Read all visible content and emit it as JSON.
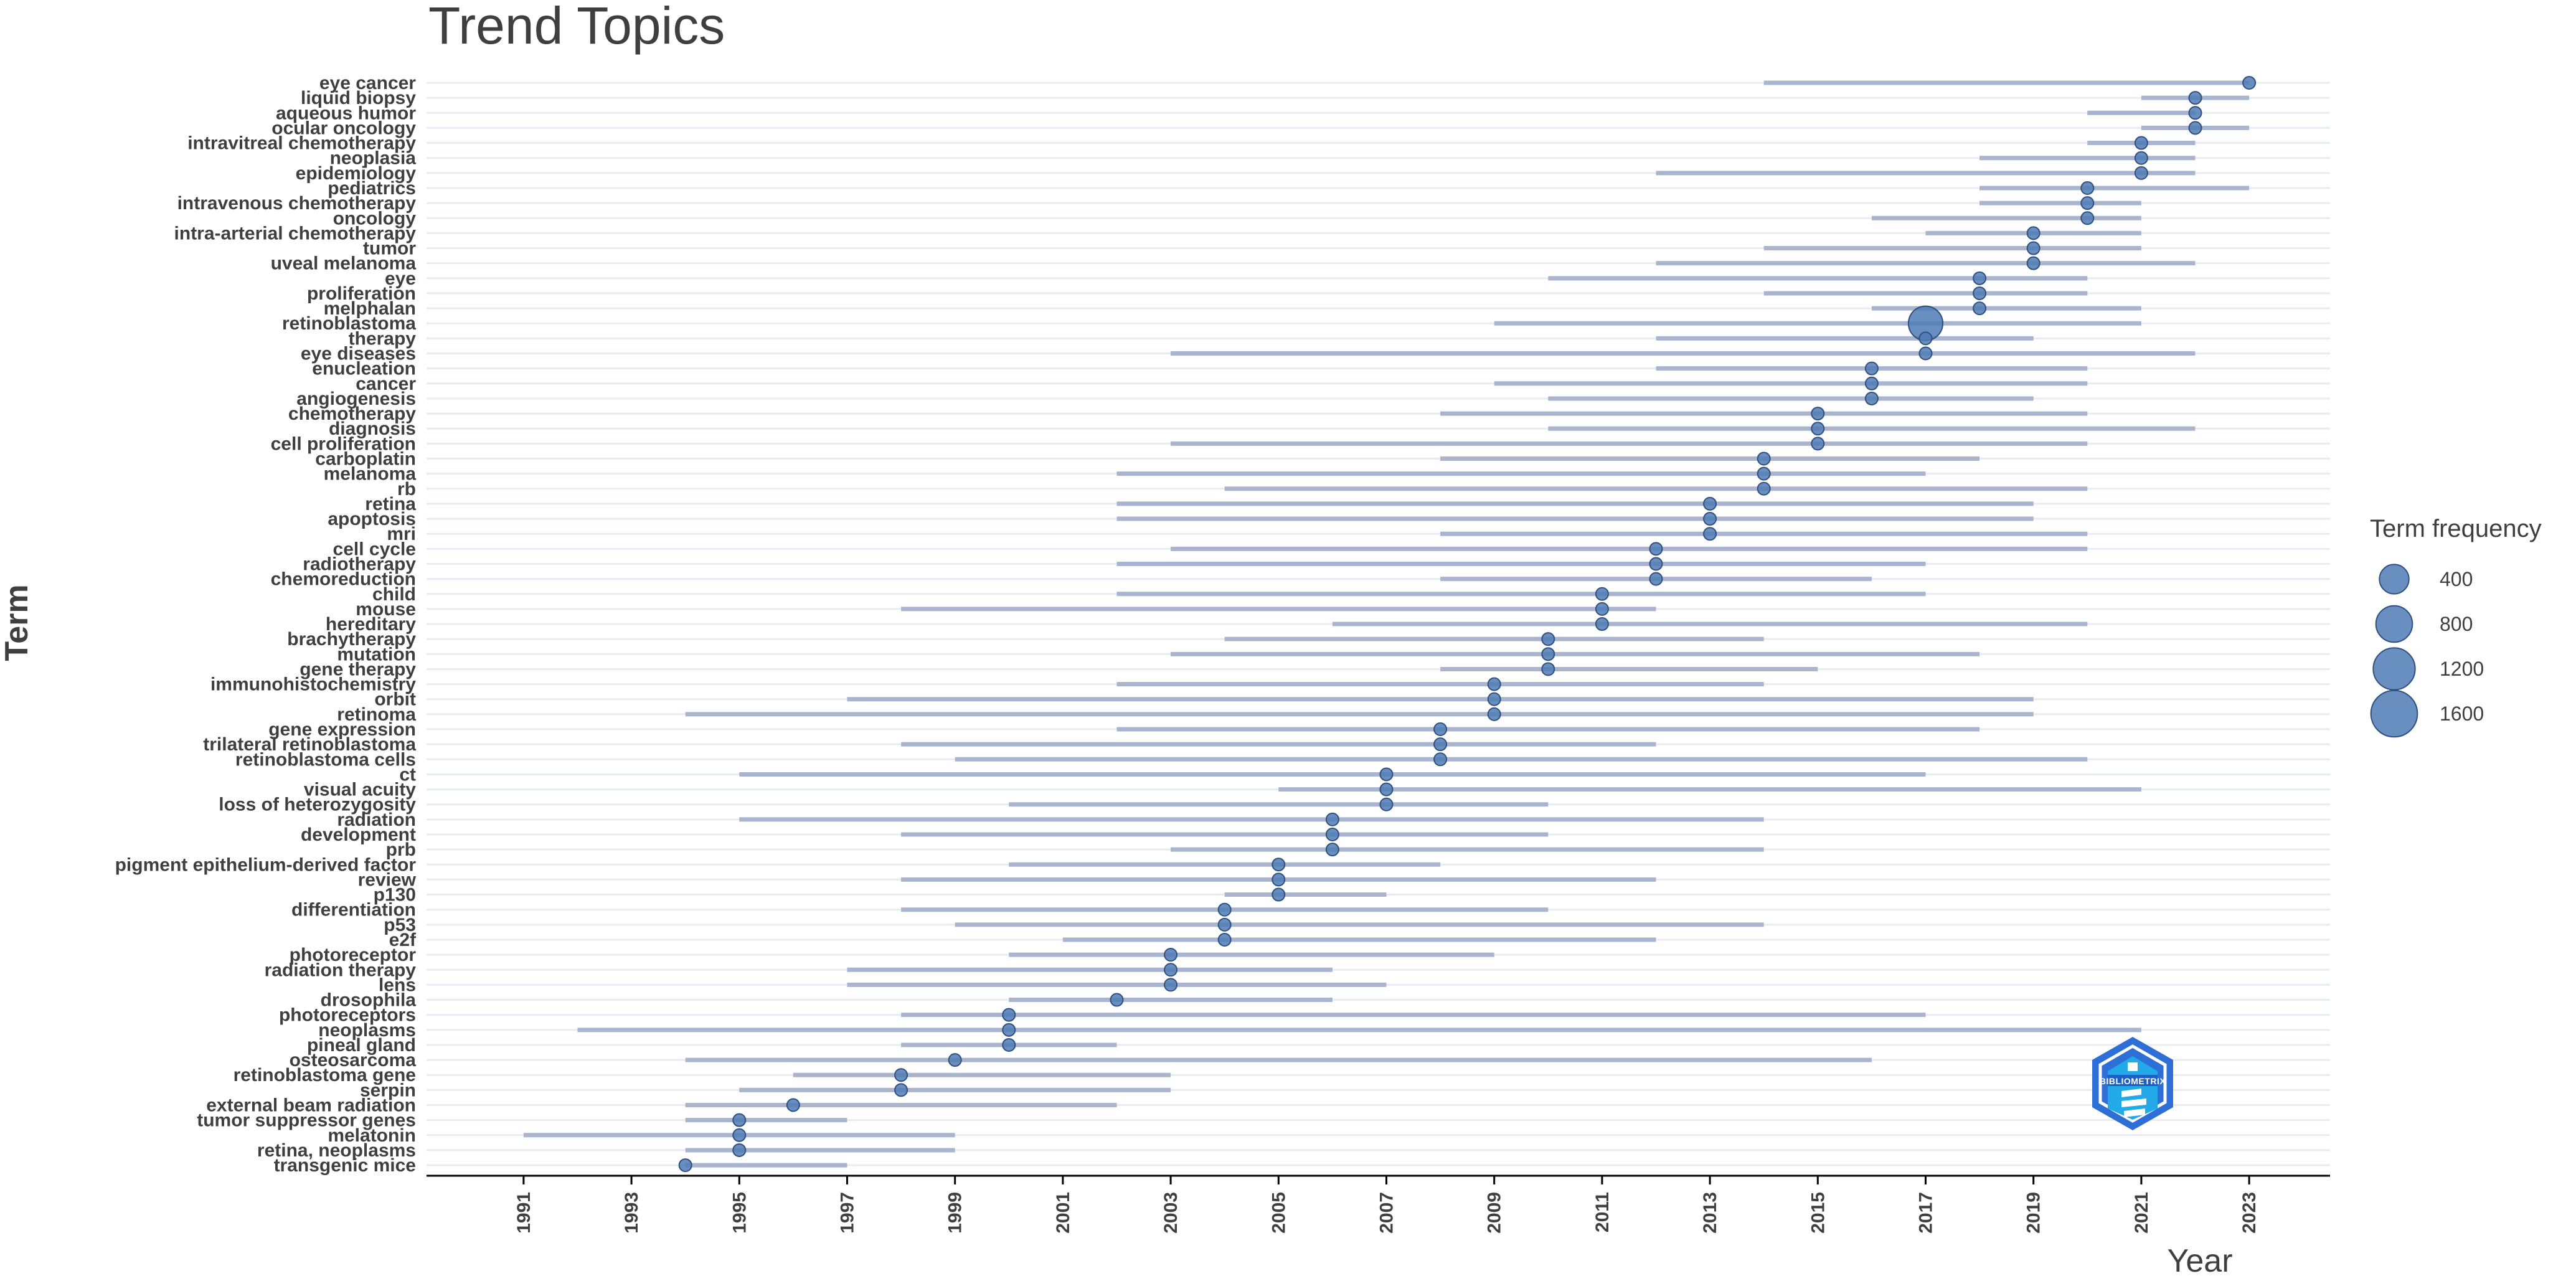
{
  "chart_data": {
    "type": "scatter",
    "title": "Trend Topics",
    "xlabel": "Year",
    "ylabel": "Term",
    "xlim": [
      1989.2,
      2024.5
    ],
    "x_ticks": [
      1991,
      1993,
      1995,
      1997,
      1999,
      2001,
      2003,
      2005,
      2007,
      2009,
      2011,
      2013,
      2015,
      2017,
      2019,
      2021,
      2023
    ],
    "grid": "horizontal",
    "legend": {
      "title": "Term frequency",
      "position": "right",
      "entries": [
        400,
        800,
        1200,
        1600
      ]
    },
    "colors": {
      "point": "#4f7bb5",
      "segment": "#a9b4cf",
      "grid": "#e8ebf0",
      "text": "#3f3f3f"
    },
    "terms": [
      {
        "term": "eye cancer",
        "start": 2014,
        "median": 2023,
        "end": 2023,
        "freq": 30
      },
      {
        "term": "liquid biopsy",
        "start": 2021,
        "median": 2022,
        "end": 2023,
        "freq": 60
      },
      {
        "term": "aqueous humor",
        "start": 2020,
        "median": 2022,
        "end": 2022,
        "freq": 60
      },
      {
        "term": "ocular oncology",
        "start": 2021,
        "median": 2022,
        "end": 2023,
        "freq": 60
      },
      {
        "term": "intravitreal chemotherapy",
        "start": 2020,
        "median": 2021,
        "end": 2022,
        "freq": 90
      },
      {
        "term": "neoplasia",
        "start": 2018,
        "median": 2021,
        "end": 2022,
        "freq": 90
      },
      {
        "term": "epidemiology",
        "start": 2012,
        "median": 2021,
        "end": 2022,
        "freq": 90
      },
      {
        "term": "pediatrics",
        "start": 2018,
        "median": 2020,
        "end": 2023,
        "freq": 100
      },
      {
        "term": "intravenous chemotherapy",
        "start": 2018,
        "median": 2020,
        "end": 2021,
        "freq": 100
      },
      {
        "term": "oncology",
        "start": 2016,
        "median": 2020,
        "end": 2021,
        "freq": 100
      },
      {
        "term": "intra-arterial chemotherapy",
        "start": 2017,
        "median": 2019,
        "end": 2021,
        "freq": 150
      },
      {
        "term": "tumor",
        "start": 2014,
        "median": 2019,
        "end": 2021,
        "freq": 150
      },
      {
        "term": "uveal melanoma",
        "start": 2012,
        "median": 2019,
        "end": 2022,
        "freq": 150
      },
      {
        "term": "eye",
        "start": 2010,
        "median": 2018,
        "end": 2020,
        "freq": 150
      },
      {
        "term": "proliferation",
        "start": 2014,
        "median": 2018,
        "end": 2020,
        "freq": 150
      },
      {
        "term": "melphalan",
        "start": 2016,
        "median": 2018,
        "end": 2021,
        "freq": 150
      },
      {
        "term": "retinoblastoma",
        "start": 2009,
        "median": 2017,
        "end": 2021,
        "freq": 1800
      },
      {
        "term": "therapy",
        "start": 2012,
        "median": 2017,
        "end": 2019,
        "freq": 60
      },
      {
        "term": "eye diseases",
        "start": 2003,
        "median": 2017,
        "end": 2022,
        "freq": 60
      },
      {
        "term": "enucleation",
        "start": 2012,
        "median": 2016,
        "end": 2020,
        "freq": 160
      },
      {
        "term": "cancer",
        "start": 2009,
        "median": 2016,
        "end": 2020,
        "freq": 160
      },
      {
        "term": "angiogenesis",
        "start": 2010,
        "median": 2016,
        "end": 2019,
        "freq": 110
      },
      {
        "term": "chemotherapy",
        "start": 2008,
        "median": 2015,
        "end": 2020,
        "freq": 220
      },
      {
        "term": "diagnosis",
        "start": 2010,
        "median": 2015,
        "end": 2022,
        "freq": 110
      },
      {
        "term": "cell proliferation",
        "start": 2003,
        "median": 2015,
        "end": 2020,
        "freq": 90
      },
      {
        "term": "carboplatin",
        "start": 2008,
        "median": 2014,
        "end": 2018,
        "freq": 130
      },
      {
        "term": "melanoma",
        "start": 2002,
        "median": 2014,
        "end": 2017,
        "freq": 130
      },
      {
        "term": "rb",
        "start": 2004,
        "median": 2014,
        "end": 2020,
        "freq": 120
      },
      {
        "term": "retina",
        "start": 2002,
        "median": 2013,
        "end": 2019,
        "freq": 200
      },
      {
        "term": "apoptosis",
        "start": 2002,
        "median": 2013,
        "end": 2019,
        "freq": 170
      },
      {
        "term": "mri",
        "start": 2008,
        "median": 2013,
        "end": 2020,
        "freq": 130
      },
      {
        "term": "cell cycle",
        "start": 2003,
        "median": 2012,
        "end": 2020,
        "freq": 130
      },
      {
        "term": "radiotherapy",
        "start": 2002,
        "median": 2012,
        "end": 2017,
        "freq": 130
      },
      {
        "term": "chemoreduction",
        "start": 2008,
        "median": 2012,
        "end": 2016,
        "freq": 130
      },
      {
        "term": "child",
        "start": 2002,
        "median": 2011,
        "end": 2017,
        "freq": 90
      },
      {
        "term": "mouse",
        "start": 1998,
        "median": 2011,
        "end": 2012,
        "freq": 90
      },
      {
        "term": "hereditary",
        "start": 2006,
        "median": 2011,
        "end": 2020,
        "freq": 90
      },
      {
        "term": "brachytherapy",
        "start": 2004,
        "median": 2010,
        "end": 2014,
        "freq": 110
      },
      {
        "term": "mutation",
        "start": 2003,
        "median": 2010,
        "end": 2018,
        "freq": 110
      },
      {
        "term": "gene therapy",
        "start": 2008,
        "median": 2010,
        "end": 2015,
        "freq": 110
      },
      {
        "term": "immunohistochemistry",
        "start": 2002,
        "median": 2009,
        "end": 2014,
        "freq": 120
      },
      {
        "term": "orbit",
        "start": 1997,
        "median": 2009,
        "end": 2019,
        "freq": 120
      },
      {
        "term": "retinoma",
        "start": 1994,
        "median": 2009,
        "end": 2019,
        "freq": 120
      },
      {
        "term": "gene expression",
        "start": 2002,
        "median": 2008,
        "end": 2018,
        "freq": 100
      },
      {
        "term": "trilateral retinoblastoma",
        "start": 1998,
        "median": 2008,
        "end": 2012,
        "freq": 100
      },
      {
        "term": "retinoblastoma cells",
        "start": 1999,
        "median": 2008,
        "end": 2020,
        "freq": 100
      },
      {
        "term": "ct",
        "start": 1995,
        "median": 2007,
        "end": 2017,
        "freq": 100
      },
      {
        "term": "visual acuity",
        "start": 2005,
        "median": 2007,
        "end": 2021,
        "freq": 100
      },
      {
        "term": "loss of heterozygosity",
        "start": 2000,
        "median": 2007,
        "end": 2010,
        "freq": 100
      },
      {
        "term": "radiation",
        "start": 1995,
        "median": 2006,
        "end": 2014,
        "freq": 110
      },
      {
        "term": "development",
        "start": 1998,
        "median": 2006,
        "end": 2010,
        "freq": 110
      },
      {
        "term": "prb",
        "start": 2003,
        "median": 2006,
        "end": 2014,
        "freq": 110
      },
      {
        "term": "pigment epithelium-derived factor",
        "start": 2000,
        "median": 2005,
        "end": 2008,
        "freq": 90
      },
      {
        "term": "review",
        "start": 1998,
        "median": 2005,
        "end": 2012,
        "freq": 90
      },
      {
        "term": "p130",
        "start": 2004,
        "median": 2005,
        "end": 2007,
        "freq": 90
      },
      {
        "term": "differentiation",
        "start": 1998,
        "median": 2004,
        "end": 2010,
        "freq": 120
      },
      {
        "term": "p53",
        "start": 1999,
        "median": 2004,
        "end": 2014,
        "freq": 120
      },
      {
        "term": "e2f",
        "start": 2001,
        "median": 2004,
        "end": 2012,
        "freq": 120
      },
      {
        "term": "photoreceptor",
        "start": 2000,
        "median": 2003,
        "end": 2009,
        "freq": 110
      },
      {
        "term": "radiation therapy",
        "start": 1997,
        "median": 2003,
        "end": 2006,
        "freq": 110
      },
      {
        "term": "lens",
        "start": 1997,
        "median": 2003,
        "end": 2007,
        "freq": 110
      },
      {
        "term": "drosophila",
        "start": 2000,
        "median": 2002,
        "end": 2006,
        "freq": 100
      },
      {
        "term": "photoreceptors",
        "start": 1998,
        "median": 2000,
        "end": 2017,
        "freq": 110
      },
      {
        "term": "neoplasms",
        "start": 1992,
        "median": 2000,
        "end": 2021,
        "freq": 110
      },
      {
        "term": "pineal gland",
        "start": 1998,
        "median": 2000,
        "end": 2002,
        "freq": 110
      },
      {
        "term": "osteosarcoma",
        "start": 1994,
        "median": 1999,
        "end": 2016,
        "freq": 100
      },
      {
        "term": "retinoblastoma gene",
        "start": 1996,
        "median": 1998,
        "end": 2003,
        "freq": 100
      },
      {
        "term": "serpin",
        "start": 1995,
        "median": 1998,
        "end": 2003,
        "freq": 100
      },
      {
        "term": "external beam radiation",
        "start": 1994,
        "median": 1996,
        "end": 2002,
        "freq": 90
      },
      {
        "term": "tumor suppressor genes",
        "start": 1994,
        "median": 1995,
        "end": 1997,
        "freq": 110
      },
      {
        "term": "melatonin",
        "start": 1991,
        "median": 1995,
        "end": 1999,
        "freq": 110
      },
      {
        "term": "retina, neoplasms",
        "start": 1994,
        "median": 1995,
        "end": 1999,
        "freq": 110
      },
      {
        "term": "transgenic mice",
        "start": 1994,
        "median": 1994,
        "end": 1997,
        "freq": 100
      }
    ]
  },
  "logo": {
    "name": "BIBLIOMETRIX"
  }
}
